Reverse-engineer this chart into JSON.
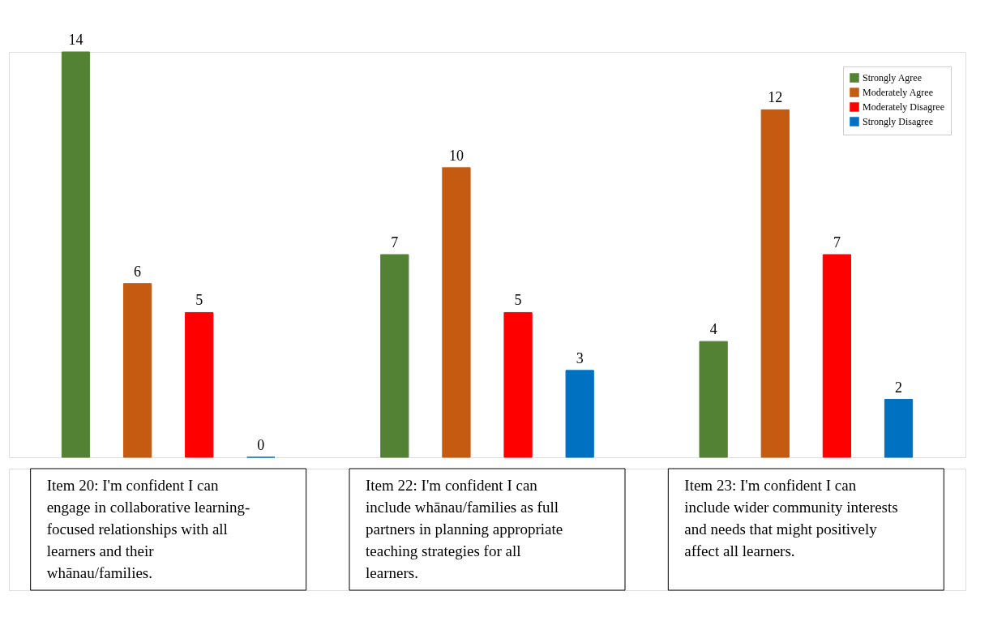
{
  "chart_data": {
    "type": "bar",
    "categories": [
      "Item 20: I'm confident I can engage in collaborative learning-focused relationships with all learners and their whānau/families.",
      "Item 22: I'm confident I can include whānau/families as full partners in planning appropriate teaching strategies for all learners.",
      "Item 23: I'm confident I can include wider community interests and needs that might positively affect all learners."
    ],
    "series": [
      {
        "name": "Strongly Agree",
        "color": "#548235",
        "values": [
          14,
          7,
          4
        ]
      },
      {
        "name": "Moderately Agree",
        "color": "#c55a11",
        "values": [
          6,
          10,
          12
        ]
      },
      {
        "name": "Moderately Disagree",
        "color": "#ff0000",
        "values": [
          5,
          5,
          7
        ]
      },
      {
        "name": "Strongly Disagree",
        "color": "#0070c0",
        "values": [
          0,
          3,
          2
        ]
      }
    ],
    "data_labels": true,
    "legend": "top right"
  }
}
